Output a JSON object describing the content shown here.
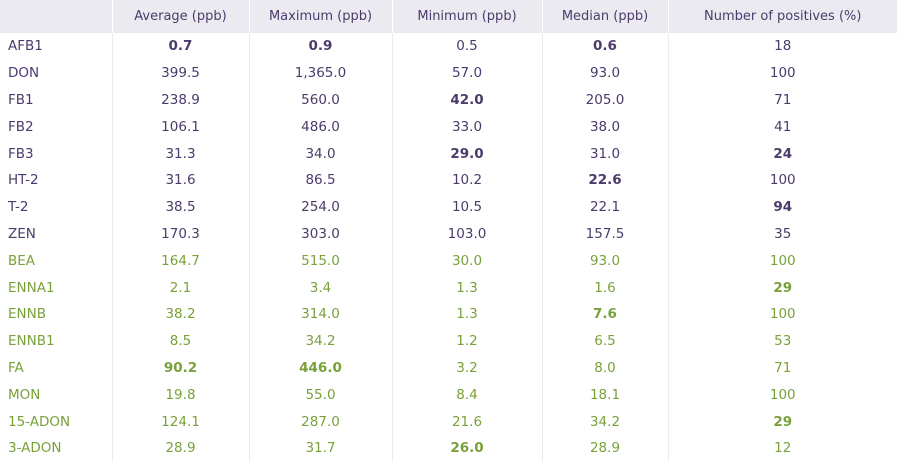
{
  "headers": [
    "",
    "Average (ppb)",
    "Maximum (ppb)",
    "Minimum (ppb)",
    "Median (ppb)",
    "Number of positives (%)"
  ],
  "colors": {
    "purple": "#4b3b6b",
    "green": "#79a13a",
    "header_bg": "#ebeaf1"
  },
  "rows": [
    {
      "name": "AFB1",
      "values": [
        "0.7",
        "0.9",
        "0.5",
        "0.6",
        "18"
      ],
      "group": "purple",
      "bold": [
        0,
        1,
        3
      ]
    },
    {
      "name": "DON",
      "values": [
        "399.5",
        "1,365.0",
        "57.0",
        "93.0",
        "100"
      ],
      "group": "purple",
      "bold": []
    },
    {
      "name": "FB1",
      "values": [
        "238.9",
        "560.0",
        "42.0",
        "205.0",
        "71"
      ],
      "group": "purple",
      "bold": [
        2
      ]
    },
    {
      "name": "FB2",
      "values": [
        "106.1",
        "486.0",
        "33.0",
        "38.0",
        "41"
      ],
      "group": "purple",
      "bold": []
    },
    {
      "name": "FB3",
      "values": [
        "31.3",
        "34.0",
        "29.0",
        "31.0",
        "24"
      ],
      "group": "purple",
      "bold": [
        2,
        4
      ]
    },
    {
      "name": "HT-2",
      "values": [
        "31.6",
        "86.5",
        "10.2",
        "22.6",
        "100"
      ],
      "group": "purple",
      "bold": [
        3
      ]
    },
    {
      "name": "T-2",
      "values": [
        "38.5",
        "254.0",
        "10.5",
        "22.1",
        "94"
      ],
      "group": "purple",
      "bold": [
        4
      ]
    },
    {
      "name": "ZEN",
      "values": [
        "170.3",
        "303.0",
        "103.0",
        "157.5",
        "35"
      ],
      "group": "purple",
      "bold": []
    },
    {
      "name": "BEA",
      "values": [
        "164.7",
        "515.0",
        "30.0",
        "93.0",
        "100"
      ],
      "group": "green",
      "bold": []
    },
    {
      "name": "ENNA1",
      "values": [
        "2.1",
        "3.4",
        "1.3",
        "1.6",
        "29"
      ],
      "group": "green",
      "bold": [
        4
      ]
    },
    {
      "name": "ENNB",
      "values": [
        "38.2",
        "314.0",
        "1.3",
        "7.6",
        "100"
      ],
      "group": "green",
      "bold": [
        3
      ]
    },
    {
      "name": "ENNB1",
      "values": [
        "8.5",
        "34.2",
        "1.2",
        "6.5",
        "53"
      ],
      "group": "green",
      "bold": []
    },
    {
      "name": "FA",
      "values": [
        "90.2",
        "446.0",
        "3.2",
        "8.0",
        "71"
      ],
      "group": "green",
      "bold": [
        0,
        1
      ]
    },
    {
      "name": "MON",
      "values": [
        "19.8",
        "55.0",
        "8.4",
        "18.1",
        "100"
      ],
      "group": "green",
      "bold": []
    },
    {
      "name": "15-ADON",
      "values": [
        "124.1",
        "287.0",
        "21.6",
        "34.2",
        "29"
      ],
      "group": "green",
      "bold": [
        4
      ]
    },
    {
      "name": "3-ADON",
      "values": [
        "28.9",
        "31.7",
        "26.0",
        "28.9",
        "12"
      ],
      "group": "green",
      "bold": [
        2
      ]
    }
  ]
}
